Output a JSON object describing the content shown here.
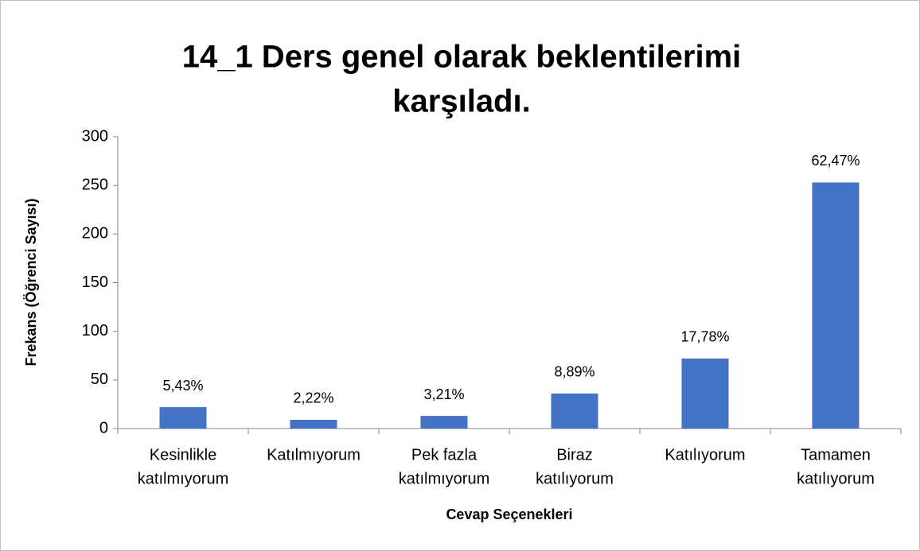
{
  "chart_data": {
    "type": "bar",
    "title": [
      "14_1 Ders genel olarak beklentilerimi",
      "karşıladı."
    ],
    "x_label": "Cevap Seçenekleri",
    "y_label": "Frekans (Öğrenci Sayısı)",
    "categories": [
      [
        "Kesinlikle",
        "katılmıyorum"
      ],
      [
        "Katılmıyorum"
      ],
      [
        "Pek fazla",
        "katılmıyorum"
      ],
      [
        "Biraz",
        "katılıyorum"
      ],
      [
        "Katılıyorum"
      ],
      [
        "Tamamen",
        "katılıyorum"
      ]
    ],
    "values": [
      22,
      9,
      13,
      36,
      72,
      253
    ],
    "percentages": [
      "5,43%",
      "2,22%",
      "3,21%",
      "8,89%",
      "17,78%",
      "62,47%"
    ],
    "color": "#4472c4",
    "ylim": [
      0,
      300
    ],
    "yticks": [
      0,
      50,
      100,
      150,
      200,
      250,
      300
    ],
    "grid": false
  }
}
